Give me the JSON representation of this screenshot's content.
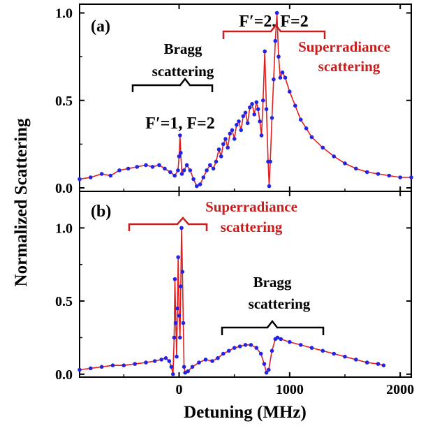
{
  "xlabel": "Detuning (MHz)",
  "ylabel": "Normalized Scattering",
  "colors": {
    "series": "#2323e6",
    "line": "#e02020",
    "annotation_red": "#c81e1e",
    "axis": "#000000"
  },
  "chart_data": [
    {
      "type": "line",
      "panel_label": "(a)",
      "xlim": [
        -900,
        2100
      ],
      "ylim": [
        -0.02,
        1.05
      ],
      "x_ticks": [
        0,
        1000,
        2000
      ],
      "x_tick_labels": [
        "0",
        "1000",
        "2000"
      ],
      "y_ticks": [
        0.0,
        0.5,
        1.0
      ],
      "y_tick_labels": [
        "0.0",
        "0.5",
        "1.0"
      ],
      "series": [
        {
          "points": [
            [
              -900,
              0.05
            ],
            [
              -800,
              0.06
            ],
            [
              -700,
              0.08
            ],
            [
              -620,
              0.07
            ],
            [
              -540,
              0.1
            ],
            [
              -460,
              0.11
            ],
            [
              -380,
              0.12
            ],
            [
              -300,
              0.13
            ],
            [
              -240,
              0.12
            ],
            [
              -180,
              0.13
            ],
            [
              -130,
              0.11
            ],
            [
              -80,
              0.09
            ],
            [
              -40,
              0.07
            ],
            [
              -10,
              0.1
            ],
            [
              0,
              0.18
            ],
            [
              8,
              0.3
            ],
            [
              15,
              0.2
            ],
            [
              25,
              0.08
            ],
            [
              45,
              0.1
            ],
            [
              70,
              0.13
            ],
            [
              100,
              0.1
            ],
            [
              130,
              0.05
            ],
            [
              160,
              0.01
            ],
            [
              190,
              0.02
            ],
            [
              220,
              0.06
            ],
            [
              250,
              0.1
            ],
            [
              280,
              0.13
            ],
            [
              310,
              0.11
            ],
            [
              335,
              0.15
            ],
            [
              360,
              0.22
            ],
            [
              380,
              0.18
            ],
            [
              400,
              0.25
            ],
            [
              420,
              0.28
            ],
            [
              440,
              0.23
            ],
            [
              460,
              0.31
            ],
            [
              480,
              0.33
            ],
            [
              500,
              0.28
            ],
            [
              520,
              0.36
            ],
            [
              540,
              0.38
            ],
            [
              560,
              0.33
            ],
            [
              580,
              0.41
            ],
            [
              600,
              0.43
            ],
            [
              620,
              0.37
            ],
            [
              640,
              0.46
            ],
            [
              660,
              0.48
            ],
            [
              680,
              0.42
            ],
            [
              700,
              0.49
            ],
            [
              715,
              0.45
            ],
            [
              730,
              0.38
            ],
            [
              745,
              0.3
            ],
            [
              760,
              0.5
            ],
            [
              775,
              0.78
            ],
            [
              790,
              0.45
            ],
            [
              805,
              0.15
            ],
            [
              815,
              0.01
            ],
            [
              825,
              0.15
            ],
            [
              840,
              0.4
            ],
            [
              855,
              0.62
            ],
            [
              870,
              0.84
            ],
            [
              885,
              1.0
            ],
            [
              900,
              0.75
            ],
            [
              915,
              0.63
            ],
            [
              935,
              0.66
            ],
            [
              960,
              0.63
            ],
            [
              1000,
              0.55
            ],
            [
              1050,
              0.47
            ],
            [
              1100,
              0.39
            ],
            [
              1150,
              0.34
            ],
            [
              1200,
              0.29
            ],
            [
              1300,
              0.23
            ],
            [
              1400,
              0.18
            ],
            [
              1500,
              0.14
            ],
            [
              1600,
              0.11
            ],
            [
              1700,
              0.09
            ],
            [
              1800,
              0.08
            ],
            [
              1900,
              0.07
            ],
            [
              2000,
              0.06
            ],
            [
              2100,
              0.06
            ]
          ]
        }
      ],
      "annotations": [
        {
          "text": "Bragg",
          "color": "black"
        },
        {
          "text": "scattering",
          "color": "black"
        },
        {
          "text": "F′=1, F=2",
          "color": "black"
        },
        {
          "text": "F′=2, F=2",
          "color": "black"
        },
        {
          "text": "Superradiance",
          "color": "red"
        },
        {
          "text": "scattering",
          "color": "red"
        }
      ]
    },
    {
      "type": "line",
      "panel_label": "(b)",
      "xlim": [
        -900,
        2100
      ],
      "ylim": [
        -0.02,
        1.25
      ],
      "x_ticks": [
        0,
        1000,
        2000
      ],
      "x_tick_labels": [
        "0",
        "1000",
        "2000"
      ],
      "y_ticks": [
        0.0,
        0.5,
        1.0
      ],
      "y_tick_labels": [
        "0.0",
        "0.5",
        "1.0"
      ],
      "series": [
        {
          "points": [
            [
              -900,
              0.03
            ],
            [
              -800,
              0.04
            ],
            [
              -700,
              0.05
            ],
            [
              -600,
              0.06
            ],
            [
              -500,
              0.06
            ],
            [
              -400,
              0.07
            ],
            [
              -300,
              0.08
            ],
            [
              -220,
              0.09
            ],
            [
              -160,
              0.1
            ],
            [
              -120,
              0.11
            ],
            [
              -90,
              0.09
            ],
            [
              -70,
              0.05
            ],
            [
              -55,
              0.0
            ],
            [
              -45,
              0.25
            ],
            [
              -38,
              0.65
            ],
            [
              -30,
              0.35
            ],
            [
              -22,
              0.12
            ],
            [
              -15,
              0.45
            ],
            [
              -8,
              0.8
            ],
            [
              0,
              0.4
            ],
            [
              8,
              0.25
            ],
            [
              15,
              0.6
            ],
            [
              22,
              1.0
            ],
            [
              30,
              0.7
            ],
            [
              38,
              0.35
            ],
            [
              45,
              0.05
            ],
            [
              55,
              0.01
            ],
            [
              80,
              0.02
            ],
            [
              120,
              0.05
            ],
            [
              180,
              0.08
            ],
            [
              240,
              0.1
            ],
            [
              300,
              0.09
            ],
            [
              350,
              0.11
            ],
            [
              400,
              0.14
            ],
            [
              450,
              0.16
            ],
            [
              500,
              0.18
            ],
            [
              550,
              0.19
            ],
            [
              600,
              0.2
            ],
            [
              650,
              0.2
            ],
            [
              700,
              0.18
            ],
            [
              740,
              0.14
            ],
            [
              770,
              0.07
            ],
            [
              790,
              0.01
            ],
            [
              810,
              0.03
            ],
            [
              840,
              0.16
            ],
            [
              870,
              0.24
            ],
            [
              890,
              0.25
            ],
            [
              920,
              0.24
            ],
            [
              1000,
              0.22
            ],
            [
              1100,
              0.2
            ],
            [
              1200,
              0.18
            ],
            [
              1300,
              0.16
            ],
            [
              1400,
              0.14
            ],
            [
              1500,
              0.12
            ],
            [
              1600,
              0.1
            ],
            [
              1700,
              0.08
            ],
            [
              1800,
              0.07
            ],
            [
              1850,
              0.06
            ]
          ]
        }
      ],
      "annotations": [
        {
          "text": "Superradiance",
          "color": "red"
        },
        {
          "text": "scattering",
          "color": "red"
        },
        {
          "text": "Bragg",
          "color": "black"
        },
        {
          "text": "scattering",
          "color": "black"
        }
      ]
    }
  ]
}
